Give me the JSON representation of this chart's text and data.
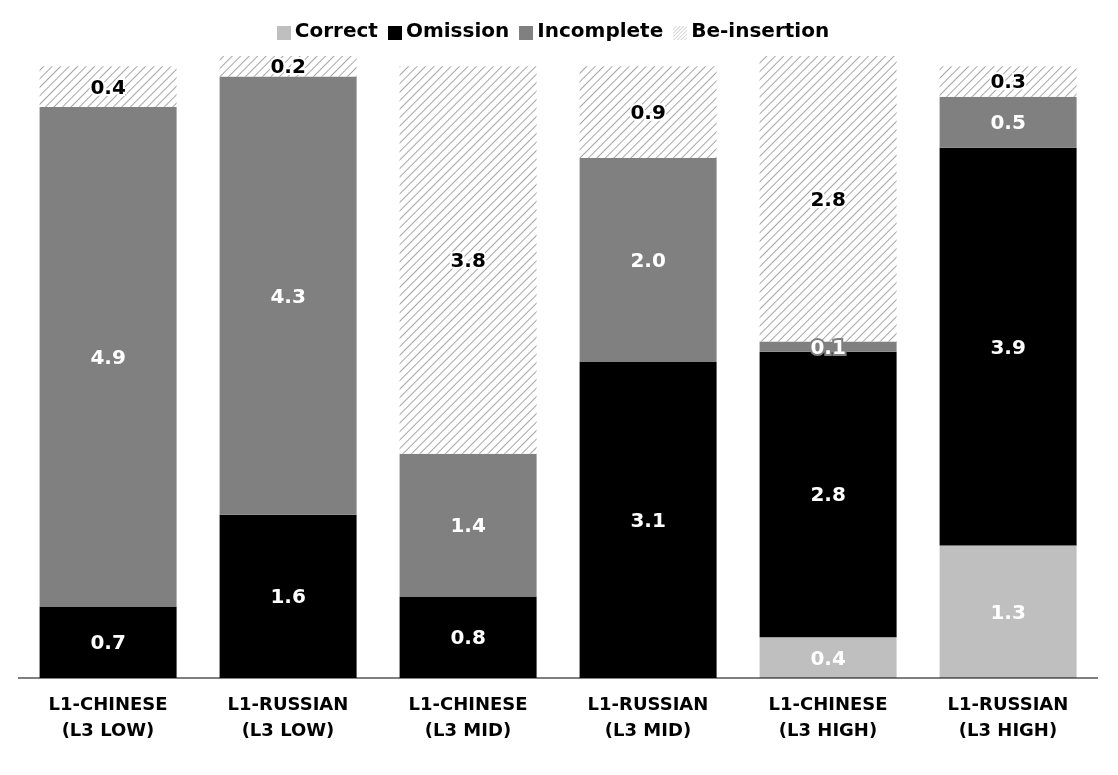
{
  "chart_data": {
    "type": "bar",
    "stacked": true,
    "legend": "top",
    "grid": false,
    "categories": [
      "L1-CHINESE (L3 LOW)",
      "L1-RUSSIAN (L3 LOW)",
      "L1-CHINESE (L3 MID)",
      "L1-RUSSIAN (L3 MID)",
      "L1-CHINESE (L3 HIGH)",
      "L1-RUSSIAN (L3 HIGH)"
    ],
    "series": [
      {
        "name": "Correct",
        "color": "#bfbfbf",
        "values": [
          null,
          null,
          null,
          null,
          0.4,
          1.3
        ],
        "value_labels": [
          null,
          null,
          null,
          null,
          "0.4",
          "1.3"
        ]
      },
      {
        "name": "Omission",
        "color": "#000000",
        "values": [
          0.7,
          1.6,
          0.8,
          3.1,
          2.8,
          3.9
        ],
        "value_labels": [
          "0.7",
          "1.6",
          "0.8",
          "3.1",
          "2.8",
          "3.9"
        ]
      },
      {
        "name": "Incomplete",
        "color": "#808080",
        "values": [
          4.9,
          4.3,
          1.4,
          2.0,
          0.1,
          0.5
        ],
        "value_labels": [
          "4.9",
          "4.3",
          "1.4",
          "2.0",
          "0.1",
          "0.5"
        ]
      },
      {
        "name": "Be-insertion",
        "color": "#a6a6a6",
        "values": [
          0.4,
          0.2,
          3.8,
          0.9,
          2.8,
          0.3
        ],
        "value_labels": [
          "0.4",
          "0.2",
          "3.8",
          "0.9",
          "2.8",
          "0.3"
        ]
      }
    ]
  }
}
